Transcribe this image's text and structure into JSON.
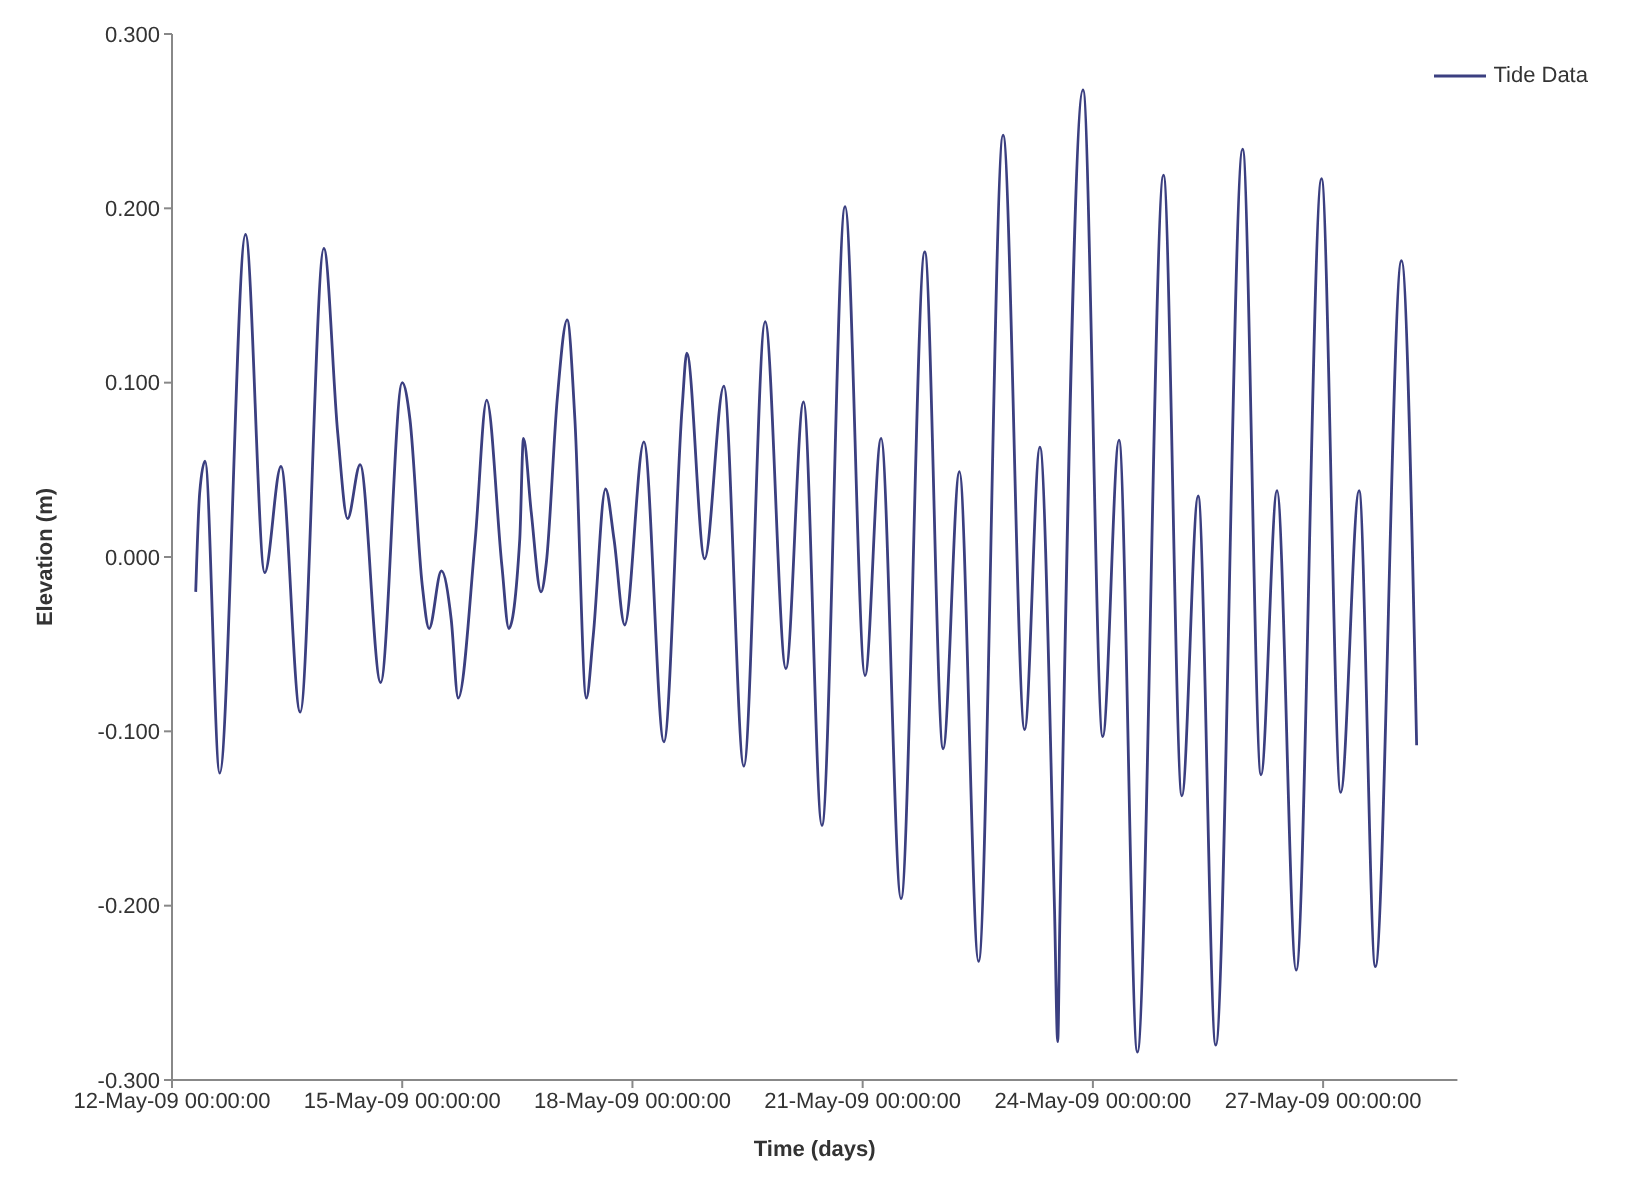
{
  "chart_data": {
    "type": "line",
    "xlabel": "Time (days)",
    "ylabel": "Elevation (m)",
    "xlim": [
      "--05-12",
      "--05-28T18:00"
    ],
    "xticks": [
      {
        "value": "--05-12",
        "label": "12-May-09 00:00:00"
      },
      {
        "value": "--05-15",
        "label": "15-May-09 00:00:00"
      },
      {
        "value": "--05-18",
        "label": "18-May-09 00:00:00"
      },
      {
        "value": "--05-21",
        "label": "21-May-09 00:00:00"
      },
      {
        "value": "--05-24",
        "label": "24-May-09 00:00:00"
      },
      {
        "value": "--05-27",
        "label": "27-May-09 00:00:00"
      }
    ],
    "ylim": [
      -0.3,
      0.3
    ],
    "yticks": [
      {
        "value": -0.3,
        "label": "-0.300"
      },
      {
        "value": -0.2,
        "label": "-0.200"
      },
      {
        "value": -0.1,
        "label": "-0.100"
      },
      {
        "value": 0,
        "label": "0.000"
      },
      {
        "value": 0.1,
        "label": "0.100"
      },
      {
        "value": 0.2,
        "label": "0.200"
      },
      {
        "value": 0.3,
        "label": "0.300"
      }
    ],
    "grid": false,
    "legend": "top right",
    "marker": "none",
    "line_style": "solid",
    "series": [
      {
        "name": "Tide Data",
        "color": "#3b3f80",
        "x": [
          "--05-12T07:25",
          "--05-12T08:40",
          "--05-12T10:20",
          "--05-12T14:55",
          "--05-12T23:00",
          "--05-13T05:00",
          "--05-13T10:05",
          "--05-13T16:05",
          "--05-13T23:30",
          "--05-14T03:50",
          "--05-14T06:55",
          "--05-14T10:50",
          "--05-14T17:15",
          "--05-15T00:00",
          "--05-15T02:25",
          "--05-15T06:15",
          "--05-15T08:25",
          "--05-15T12:15",
          "--05-15T15:20",
          "--05-15T17:30",
          "--05-15T22:50",
          "--05-16T02:25",
          "--05-16T07:10",
          "--05-16T09:20",
          "--05-16T12:45",
          "--05-16T13:55",
          "--05-16T16:20",
          "--05-16T19:25",
          "--05-16T21:05",
          "--05-17T00:30",
          "--05-17T03:35",
          "--05-17T06:00",
          "--05-17T09:35",
          "--05-17T11:45",
          "--05-17T15:35",
          "--05-17T18:15",
          "--05-17T21:35",
          "--05-18T03:35",
          "--05-18T09:50",
          "--05-18T15:35",
          "--05-18T17:00",
          "--05-18T22:35",
          "--05-19T04:35",
          "--05-19T10:50",
          "--05-19T17:30",
          "--05-20T00:00",
          "--05-20T05:30",
          "--05-20T11:15",
          "--05-20T18:30",
          "--05-21T00:45",
          "--05-21T05:45",
          "--05-21T12:00",
          "--05-21T19:25",
          "--05-22T01:10",
          "--05-22T06:15",
          "--05-22T12:15",
          "--05-22T19:55",
          "--05-23T02:40",
          "--05-23T07:25",
          "--05-23T12:00",
          "--05-23T13:00",
          "--05-23T13:40",
          "--05-23T20:55",
          "--05-24T03:05",
          "--05-24T08:10",
          "--05-24T13:55",
          "--05-24T22:05",
          "--05-25T03:50",
          "--05-25T08:55",
          "--05-25T14:25",
          "--05-25T22:50",
          "--05-26T04:35",
          "--05-26T09:35",
          "--05-26T15:35",
          "--05-26T23:30",
          "--05-27T05:30",
          "--05-27T11:15",
          "--05-27T16:20",
          "--05-28T00:30",
          "--05-28T05:15"
        ],
        "values": [
          -0.02,
          0.037,
          0.055,
          -0.124,
          0.185,
          -0.009,
          0.052,
          -0.089,
          0.177,
          0.071,
          0.022,
          0.053,
          -0.072,
          0.1,
          0.079,
          -0.016,
          -0.041,
          -0.008,
          -0.036,
          -0.081,
          0.01,
          0.09,
          -0.005,
          -0.041,
          0.01,
          0.068,
          0.026,
          -0.02,
          -0.003,
          0.091,
          0.136,
          0.079,
          -0.081,
          -0.045,
          0.039,
          0.01,
          -0.039,
          0.066,
          -0.106,
          0.087,
          0.117,
          -0.001,
          0.098,
          -0.12,
          0.135,
          -0.064,
          0.089,
          -0.154,
          0.201,
          -0.068,
          0.068,
          -0.196,
          0.175,
          -0.11,
          0.049,
          -0.232,
          0.242,
          -0.099,
          0.063,
          -0.202,
          -0.278,
          -0.209,
          0.268,
          -0.103,
          0.067,
          -0.284,
          0.219,
          -0.137,
          0.035,
          -0.28,
          0.234,
          -0.125,
          0.038,
          -0.237,
          0.217,
          -0.135,
          0.038,
          -0.235,
          0.17,
          -0.108
        ]
      }
    ]
  }
}
